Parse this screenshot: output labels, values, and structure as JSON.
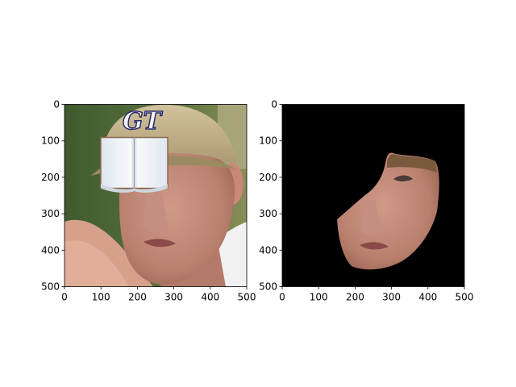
{
  "chart_data": [
    {
      "type": "image",
      "content": "photo of a man wearing a cap with a GT logo, partially covered by an open book image over the eyes",
      "cap_logo_text": "GT",
      "xlim": [
        0,
        500
      ],
      "ylim": [
        500,
        0
      ],
      "xticks": [
        0,
        100,
        200,
        300,
        400,
        500
      ],
      "yticks": [
        0,
        100,
        200,
        300,
        400,
        500
      ],
      "xtick_labels": [
        "0",
        "100",
        "200",
        "300",
        "400",
        "500"
      ],
      "ytick_labels": [
        "0",
        "100",
        "200",
        "300",
        "400",
        "500"
      ],
      "occluder": {
        "type": "open-book",
        "x0": 100,
        "x1": 285,
        "y0": 90,
        "y1": 230
      }
    },
    {
      "type": "image",
      "content": "face segmentation mask: face region shown on a black background",
      "background_color": "#000000",
      "xlim": [
        0,
        500
      ],
      "ylim": [
        500,
        0
      ],
      "xticks": [
        0,
        100,
        200,
        300,
        400,
        500
      ],
      "yticks": [
        0,
        100,
        200,
        300,
        400,
        500
      ],
      "xtick_labels": [
        "0",
        "100",
        "200",
        "300",
        "400",
        "500"
      ],
      "ytick_labels": [
        "0",
        "100",
        "200",
        "300",
        "400",
        "500"
      ]
    }
  ],
  "colors": {
    "skin": "#c08a78",
    "cap": "#c7b68d",
    "background_green": "#4d6a38",
    "shirt": "#f1f1f1",
    "book": "#eef2f6"
  }
}
